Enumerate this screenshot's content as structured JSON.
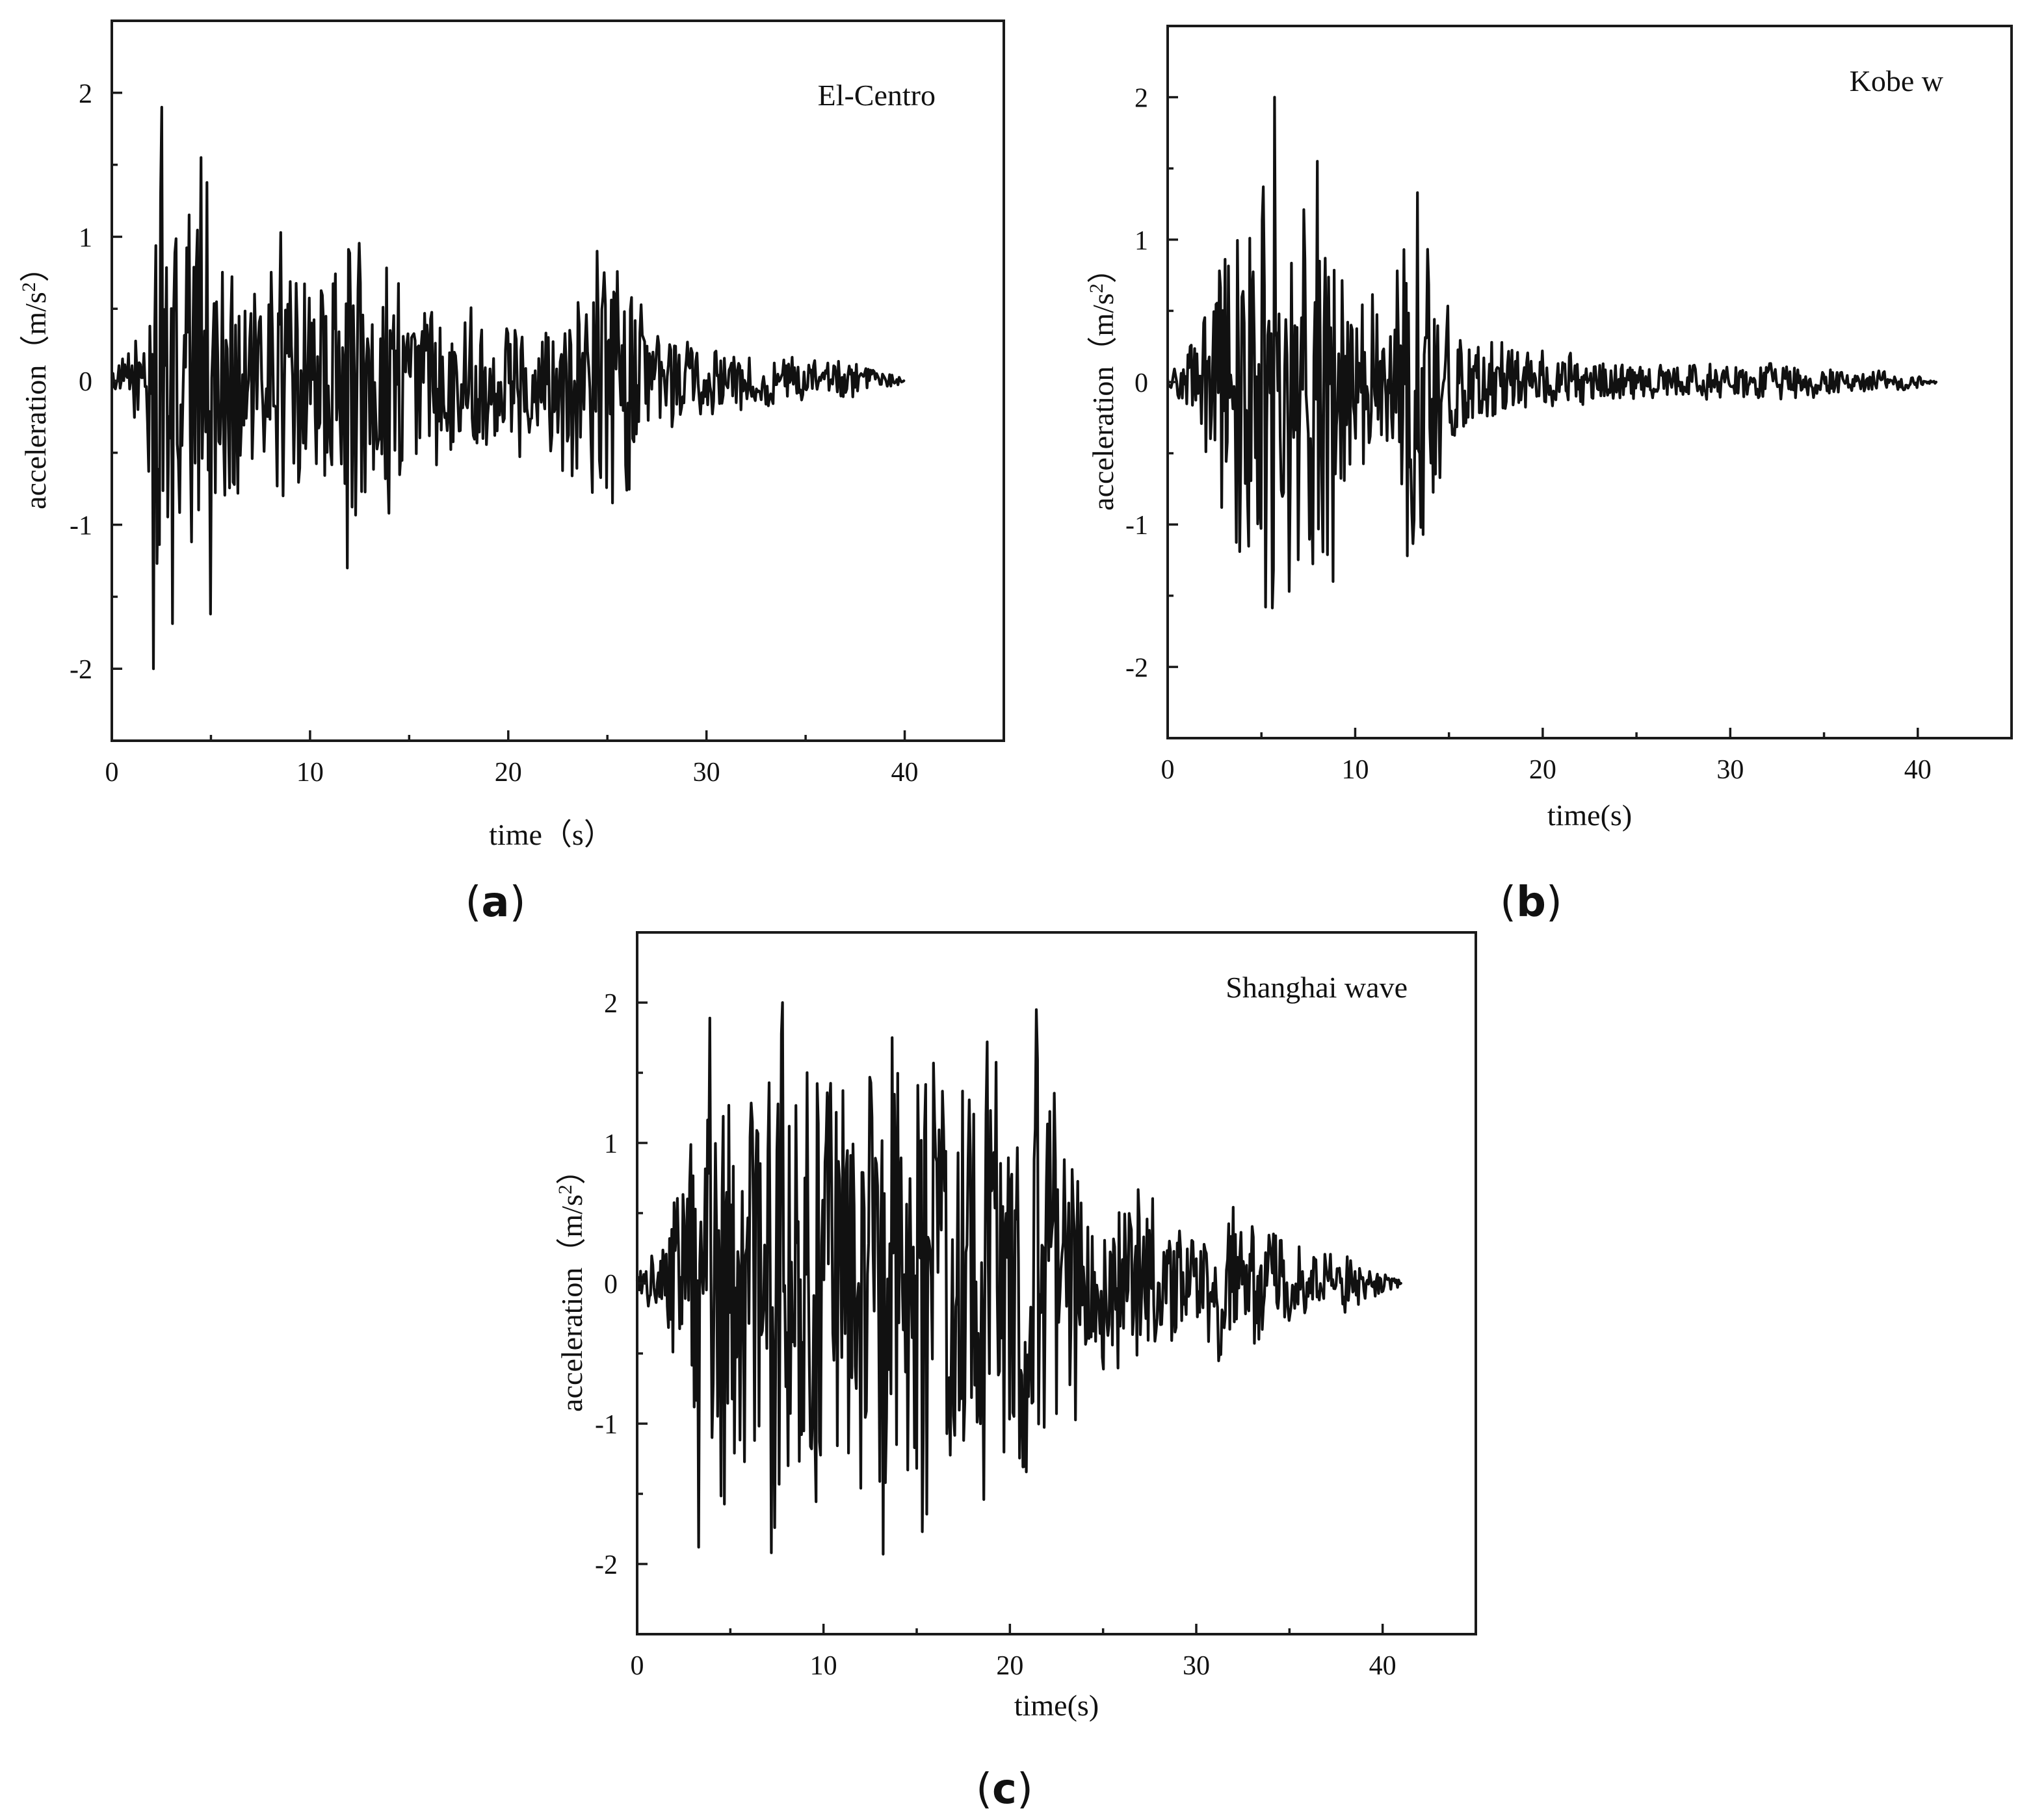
{
  "chart_data": [
    {
      "type": "line",
      "panel": "(a)",
      "panel_letter": "a",
      "annotation": "El-Centro",
      "xlabel": "time（s）",
      "ylabel": "acceleration（m/s",
      "ylabel_sup": "2",
      "ylabel_close": "）",
      "xlim": [
        0,
        45
      ],
      "ylim": [
        -2.5,
        2.5
      ],
      "xticks": [
        0,
        10,
        20,
        30,
        40
      ],
      "yticks": [
        -2,
        -1,
        0,
        1,
        2
      ],
      "grid": false,
      "duration": 40,
      "envelope": [
        [
          0,
          0.05
        ],
        [
          1.5,
          0.4
        ],
        [
          2.5,
          1.9
        ],
        [
          5,
          1.55
        ],
        [
          7,
          0.6
        ],
        [
          8.5,
          1.05
        ],
        [
          11,
          0.85
        ],
        [
          12,
          1.3
        ],
        [
          14,
          0.95
        ],
        [
          17,
          0.6
        ],
        [
          22,
          0.55
        ],
        [
          24,
          0.9
        ],
        [
          26,
          0.9
        ],
        [
          27,
          0.5
        ],
        [
          30,
          0.3
        ],
        [
          33,
          0.2
        ],
        [
          37,
          0.15
        ],
        [
          40,
          0.02
        ]
      ],
      "peaks": [
        [
          2.1,
          -2.0
        ],
        [
          2.5,
          1.9
        ],
        [
          4.5,
          1.55
        ],
        [
          5.0,
          -1.62
        ],
        [
          8.5,
          1.03
        ],
        [
          11.9,
          -1.3
        ],
        [
          14.0,
          -0.92
        ],
        [
          24.5,
          0.9
        ],
        [
          26.0,
          -0.76
        ]
      ]
    },
    {
      "type": "line",
      "panel": "(b)",
      "panel_letter": "b",
      "annotation": "Kobe w",
      "xlabel": "time(s)",
      "ylabel": "acceleration（m/s",
      "ylabel_sup": "2",
      "ylabel_close": "）",
      "xlim": [
        0,
        45
      ],
      "ylim": [
        -2.5,
        2.5
      ],
      "xticks": [
        0,
        10,
        20,
        30,
        40
      ],
      "yticks": [
        -2,
        -1,
        0,
        1,
        2
      ],
      "grid": false,
      "duration": 41,
      "envelope": [
        [
          0,
          0.03
        ],
        [
          1.5,
          0.35
        ],
        [
          2.5,
          1.1
        ],
        [
          4.5,
          1.5
        ],
        [
          5.5,
          2.0
        ],
        [
          6.5,
          1.5
        ],
        [
          8.5,
          1.5
        ],
        [
          10,
          0.6
        ],
        [
          12,
          0.7
        ],
        [
          13,
          1.35
        ],
        [
          14.5,
          0.75
        ],
        [
          16,
          0.4
        ],
        [
          20,
          0.25
        ],
        [
          25,
          0.15
        ],
        [
          33,
          0.15
        ],
        [
          38,
          0.1
        ],
        [
          41,
          0.02
        ]
      ],
      "peaks": [
        [
          5.7,
          2.0
        ],
        [
          5.2,
          -1.58
        ],
        [
          6.5,
          -1.47
        ],
        [
          8.0,
          1.55
        ],
        [
          8.8,
          -1.4
        ],
        [
          12.8,
          -1.22
        ],
        [
          13.3,
          1.33
        ]
      ]
    },
    {
      "type": "line",
      "panel": "(c)",
      "panel_letter": "c",
      "annotation": "Shanghai wave",
      "xlabel": "time(s)",
      "ylabel": "acceleration（m/s",
      "ylabel_sup": "2",
      "ylabel_close": "）",
      "xlim": [
        0,
        45
      ],
      "ylim": [
        -2.5,
        2.5
      ],
      "xticks": [
        0,
        10,
        20,
        30,
        40
      ],
      "yticks": [
        -2,
        -1,
        0,
        1,
        2
      ],
      "grid": false,
      "duration": 41,
      "envelope": [
        [
          0,
          0.1
        ],
        [
          1.5,
          0.3
        ],
        [
          2.5,
          1.1
        ],
        [
          4,
          1.9
        ],
        [
          8,
          2.0
        ],
        [
          13,
          1.9
        ],
        [
          19,
          1.75
        ],
        [
          21.5,
          1.95
        ],
        [
          23,
          1.1
        ],
        [
          25,
          0.8
        ],
        [
          27,
          0.8
        ],
        [
          30,
          0.5
        ],
        [
          32,
          0.6
        ],
        [
          35,
          0.35
        ],
        [
          38,
          0.25
        ],
        [
          41,
          0.02
        ]
      ],
      "peaks": [
        [
          3.3,
          -1.88
        ],
        [
          3.9,
          1.89
        ],
        [
          7.2,
          -1.92
        ],
        [
          7.8,
          2.0
        ],
        [
          13.2,
          -1.93
        ],
        [
          13.7,
          1.75
        ],
        [
          15.3,
          -1.77
        ],
        [
          18.8,
          1.72
        ],
        [
          21.4,
          1.95
        ]
      ]
    }
  ]
}
